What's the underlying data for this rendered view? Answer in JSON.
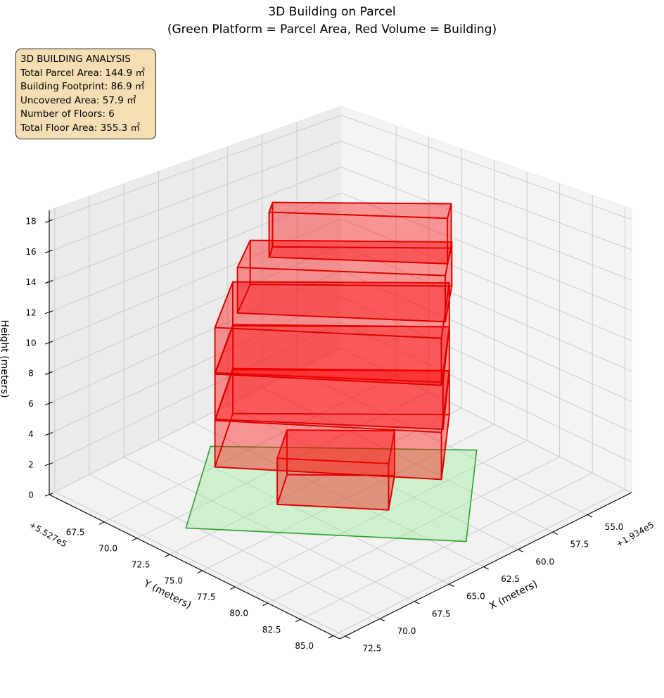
{
  "title": {
    "line1": "3D Building on Parcel",
    "line2": "(Green Platform = Parcel Area, Red Volume = Building)"
  },
  "info_box": {
    "heading": "3D BUILDING ANALYSIS",
    "lines": [
      "Total Parcel Area: 144.9 ㎡",
      "Building Footprint: 86.9 ㎡",
      "Uncovered Area: 57.9 ㎡",
      "Number of Floors: 6",
      "Total Floor Area: 355.3 ㎡"
    ]
  },
  "chart_data": {
    "type": "3d-polygons",
    "title": "3D Building on Parcel (Green Platform = Parcel Area, Red Volume = Building)",
    "xlabel": "X (meters)",
    "ylabel": "Y (meters)",
    "zlabel": "Height (meters)",
    "x_offset_text": "+1.934e5",
    "y_offset_text": "+5.527e5",
    "xlim": [
      51.8,
      72.9
    ],
    "ylim": [
      63.3,
      85.5
    ],
    "zlim": [
      0,
      18.7
    ],
    "xticks": [
      "55.0",
      "57.5",
      "60.0",
      "62.5",
      "65.0",
      "67.5",
      "70.0",
      "72.5"
    ],
    "yticks": [
      "67.5",
      "70.0",
      "72.5",
      "75.0",
      "77.5",
      "80.0",
      "82.5",
      "85.0"
    ],
    "zticks": [
      "0",
      "2",
      "4",
      "6",
      "8",
      "10",
      "12",
      "14",
      "16",
      "18"
    ],
    "grid": true,
    "colors": {
      "parcel_fill": "#90ee90",
      "parcel_edge": "#2ca02c",
      "building_fill": "#ff0000",
      "building_edge": "#dd0000"
    },
    "parcel": {
      "name": "Parcel Area",
      "polygon": [
        [
          70.4,
          71.1
        ],
        [
          61.3,
          82.9
        ],
        [
          54.3,
          76.3
        ],
        [
          63.6,
          65.8
        ]
      ],
      "z": 0
    },
    "building_floors": [
      {
        "floor": 1,
        "z": [
          0,
          3
        ],
        "polygon": [
          [
            65.4,
            72.8
          ],
          [
            61.8,
            77.5
          ],
          [
            59.1,
            75.1
          ],
          [
            62.9,
            70.9
          ]
        ]
      },
      {
        "floor": 2,
        "z": [
          3,
          6
        ],
        "polygon": [
          [
            68.3,
            71.1
          ],
          [
            61.1,
            80.8
          ],
          [
            55.9,
            75.9
          ],
          [
            63.6,
            67.5
          ]
        ]
      },
      {
        "floor": 3,
        "z": [
          6,
          9
        ],
        "polygon": [
          [
            68.2,
            71.0
          ],
          [
            60.8,
            80.6
          ],
          [
            55.9,
            75.9
          ],
          [
            63.5,
            67.4
          ]
        ]
      },
      {
        "floor": 4,
        "z": [
          9,
          12
        ],
        "polygon": [
          [
            68.3,
            71.1
          ],
          [
            61.1,
            80.8
          ],
          [
            55.9,
            75.9
          ],
          [
            63.6,
            67.5
          ]
        ]
      },
      {
        "floor": 5,
        "z": [
          12,
          15
        ],
        "polygon": [
          [
            66.2,
            70.6
          ],
          [
            59.5,
            79.4
          ],
          [
            56.1,
            76.3
          ],
          [
            63.2,
            68.4
          ]
        ]
      },
      {
        "floor": 6,
        "z": [
          15,
          18
        ],
        "polygon": [
          [
            64.1,
            70.8
          ],
          [
            58.3,
            78.3
          ],
          [
            56.7,
            76.9
          ],
          [
            63.0,
            69.9
          ]
        ]
      }
    ]
  }
}
